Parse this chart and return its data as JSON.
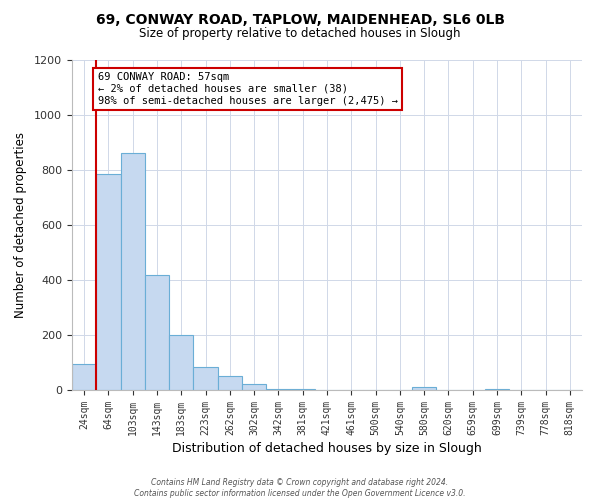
{
  "title1": "69, CONWAY ROAD, TAPLOW, MAIDENHEAD, SL6 0LB",
  "title2": "Size of property relative to detached houses in Slough",
  "xlabel": "Distribution of detached houses by size in Slough",
  "ylabel": "Number of detached properties",
  "bar_color": "#c6d9f0",
  "bar_edge_color": "#6aaed6",
  "annotation_box_edge": "#cc0000",
  "property_line_color": "#cc0000",
  "footer": "Contains HM Land Registry data © Crown copyright and database right 2024.\nContains public sector information licensed under the Open Government Licence v3.0.",
  "bins": [
    "24sqm",
    "64sqm",
    "103sqm",
    "143sqm",
    "183sqm",
    "223sqm",
    "262sqm",
    "302sqm",
    "342sqm",
    "381sqm",
    "421sqm",
    "461sqm",
    "500sqm",
    "540sqm",
    "580sqm",
    "620sqm",
    "659sqm",
    "699sqm",
    "739sqm",
    "778sqm",
    "818sqm"
  ],
  "values": [
    95,
    785,
    862,
    420,
    200,
    85,
    52,
    22,
    5,
    2,
    1,
    0,
    0,
    0,
    10,
    0,
    0,
    5,
    0,
    0,
    0
  ],
  "annotation_line1": "69 CONWAY ROAD: 57sqm",
  "annotation_line2": "← 2% of detached houses are smaller (38)",
  "annotation_line3": "98% of semi-detached houses are larger (2,475) →",
  "ylim": [
    0,
    1200
  ],
  "yticks": [
    0,
    200,
    400,
    600,
    800,
    1000,
    1200
  ]
}
